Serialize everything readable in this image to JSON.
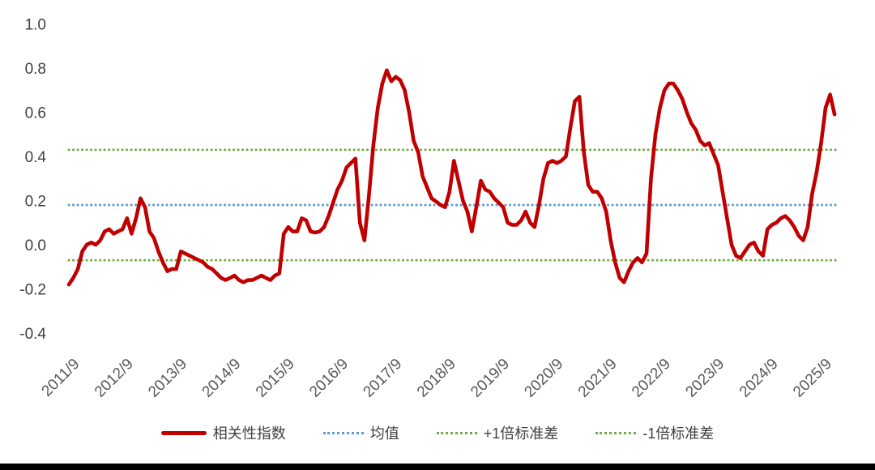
{
  "page": {
    "background_color": "#ffffff",
    "bottom_bar_color": "#000000"
  },
  "chart_data": {
    "type": "line",
    "title": "",
    "xlabel": "",
    "ylabel": "",
    "x_start": "2011/9",
    "x_frequency": "monthly",
    "x_tick_labels": [
      "2011/9",
      "2012/9",
      "2013/9",
      "2014/9",
      "2015/9",
      "2016/9",
      "2017/9",
      "2018/9",
      "2019/9",
      "2020/9",
      "2021/9",
      "2022/9",
      "2023/9",
      "2024/9",
      "2025/9"
    ],
    "x_tick_month_indices": [
      0,
      12,
      24,
      36,
      48,
      60,
      72,
      84,
      96,
      108,
      120,
      132,
      144,
      156,
      168
    ],
    "y_tick_labels": [
      "1.0",
      "0.8",
      "0.6",
      "0.4",
      "0.2",
      "0.0",
      "-0.2",
      "-0.4"
    ],
    "y_tick_values": [
      1.0,
      0.8,
      0.6,
      0.4,
      0.2,
      0.0,
      -0.2,
      -0.4
    ],
    "ylim": [
      -0.4,
      1.0
    ],
    "grid": false,
    "legend_position": "bottom",
    "series": [
      {
        "name": "相关性指数",
        "color": "#c00000",
        "style": "solid",
        "values": [
          -0.18,
          -0.15,
          -0.11,
          -0.03,
          0.0,
          0.01,
          0.0,
          0.02,
          0.06,
          0.07,
          0.05,
          0.06,
          0.07,
          0.12,
          0.05,
          0.12,
          0.21,
          0.17,
          0.06,
          0.03,
          -0.03,
          -0.08,
          -0.12,
          -0.11,
          -0.11,
          -0.03,
          -0.04,
          -0.05,
          -0.06,
          -0.07,
          -0.08,
          -0.1,
          -0.11,
          -0.13,
          -0.15,
          -0.16,
          -0.15,
          -0.14,
          -0.16,
          -0.17,
          -0.16,
          -0.16,
          -0.15,
          -0.14,
          -0.15,
          -0.16,
          -0.14,
          -0.13,
          0.05,
          0.08,
          0.06,
          0.06,
          0.12,
          0.11,
          0.06,
          0.055,
          0.06,
          0.08,
          0.13,
          0.19,
          0.25,
          0.29,
          0.35,
          0.37,
          0.39,
          0.1,
          0.02,
          0.22,
          0.45,
          0.62,
          0.73,
          0.79,
          0.74,
          0.76,
          0.745,
          0.7,
          0.6,
          0.47,
          0.42,
          0.31,
          0.26,
          0.21,
          0.196,
          0.18,
          0.17,
          0.24,
          0.38,
          0.29,
          0.2,
          0.15,
          0.06,
          0.17,
          0.29,
          0.25,
          0.24,
          0.21,
          0.19,
          0.17,
          0.1,
          0.09,
          0.09,
          0.11,
          0.15,
          0.1,
          0.08,
          0.18,
          0.3,
          0.37,
          0.38,
          0.37,
          0.38,
          0.4,
          0.53,
          0.65,
          0.67,
          0.42,
          0.27,
          0.24,
          0.24,
          0.21,
          0.15,
          0.02,
          -0.08,
          -0.15,
          -0.17,
          -0.12,
          -0.08,
          -0.06,
          -0.08,
          -0.04,
          0.3,
          0.5,
          0.62,
          0.7,
          0.73,
          0.73,
          0.7,
          0.66,
          0.6,
          0.55,
          0.52,
          0.47,
          0.45,
          0.46,
          0.41,
          0.36,
          0.24,
          0.12,
          0.0,
          -0.05,
          -0.06,
          -0.03,
          0.0,
          0.01,
          -0.03,
          -0.05,
          0.07,
          0.09,
          0.1,
          0.12,
          0.13,
          0.11,
          0.08,
          0.04,
          0.02,
          0.08,
          0.23,
          0.33,
          0.46,
          0.62,
          0.68,
          0.59
        ]
      }
    ],
    "reference_lines": [
      {
        "name": "均值",
        "value": 0.18,
        "color": "#5b9bd5",
        "style": "dotted"
      },
      {
        "name": "+1倍标准差",
        "value": 0.43,
        "color": "#70ad47",
        "style": "dotted"
      },
      {
        "name": "-1倍标准差",
        "value": -0.07,
        "color": "#70ad47",
        "style": "dotted"
      }
    ]
  },
  "legend": {
    "items": [
      {
        "label": "相关性指数",
        "color": "#c00000",
        "style": "solid"
      },
      {
        "label": "均值",
        "color": "#5b9bd5",
        "style": "dotted"
      },
      {
        "label": "+1倍标准差",
        "color": "#70ad47",
        "style": "dotted"
      },
      {
        "label": "-1倍标准差",
        "color": "#70ad47",
        "style": "dotted"
      }
    ]
  }
}
